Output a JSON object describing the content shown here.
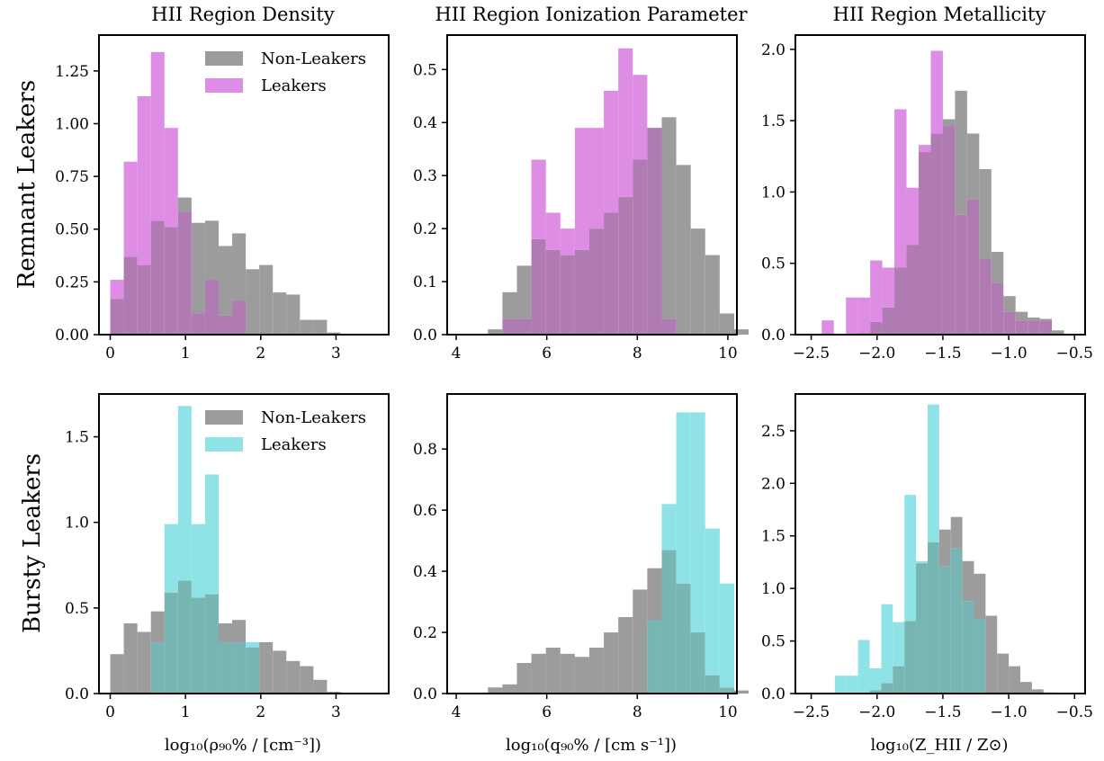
{
  "figure": {
    "column_titles": [
      "HII Region Density",
      "HII Region Ionization Parameter",
      "HII Region Metallicity"
    ],
    "row_labels": [
      "Remnant Leakers",
      "Bursty Leakers"
    ],
    "xlabels": [
      "log₁₀(ρ₉₀% / [cm⁻³])",
      "log₁₀(q₉₀% / [cm s⁻¹])",
      "log₁₀(Z_HII / Z⊙)"
    ],
    "colors": {
      "non_leakers": "#9c9c9c",
      "remnant_leakers": "#dd8de3",
      "bursty_leakers": "#8fe3e6",
      "remnant_overlap": "#b07bb2",
      "bursty_overlap": "#78b6b4"
    }
  },
  "chart_data": [
    {
      "type": "bar",
      "panel": "remnant-density",
      "row": 0,
      "col": 0,
      "xlim": [
        -0.15,
        3.7
      ],
      "ylim": [
        0,
        1.42
      ],
      "bin_start": 0.0,
      "bin_width": 0.18,
      "xticks": [
        0,
        1,
        2,
        3
      ],
      "xtick_labels": [
        "0",
        "1",
        "2",
        "3"
      ],
      "yticks": [
        0,
        0.25,
        0.5,
        0.75,
        1.0,
        1.25
      ],
      "ytick_labels": [
        "0.00",
        "0.25",
        "0.50",
        "0.75",
        "1.00",
        "1.25"
      ],
      "legend": {
        "position": "top-right",
        "entries": [
          "Non-Leakers",
          "Leakers"
        ]
      },
      "series": [
        {
          "name": "Non-Leakers",
          "values": [
            0.17,
            0.37,
            0.33,
            0.54,
            0.51,
            0.65,
            0.53,
            0.54,
            0.42,
            0.48,
            0.31,
            0.33,
            0.2,
            0.19,
            0.07,
            0.07,
            0.01,
            0,
            0
          ]
        },
        {
          "name": "Leakers",
          "values": [
            0.26,
            0.82,
            1.13,
            1.34,
            0.98,
            0.58,
            0.1,
            0.26,
            0.09,
            0.16,
            0,
            0,
            0,
            0,
            0,
            0,
            0,
            0,
            0
          ]
        }
      ]
    },
    {
      "type": "bar",
      "panel": "remnant-ionization",
      "row": 0,
      "col": 1,
      "xlim": [
        3.8,
        10.2
      ],
      "ylim": [
        0,
        0.565
      ],
      "bin_start": 4.7,
      "bin_width": 0.32,
      "xticks": [
        4,
        6,
        8,
        10
      ],
      "xtick_labels": [
        "4",
        "6",
        "8",
        "10"
      ],
      "yticks": [
        0,
        0.1,
        0.2,
        0.3,
        0.4,
        0.5
      ],
      "ytick_labels": [
        "0.0",
        "0.1",
        "0.2",
        "0.3",
        "0.4",
        "0.5"
      ],
      "series": [
        {
          "name": "Non-Leakers",
          "values": [
            0.01,
            0.08,
            0.13,
            0.18,
            0.16,
            0.15,
            0.16,
            0.2,
            0.23,
            0.26,
            0.33,
            0.39,
            0.41,
            0.32,
            0.2,
            0.15,
            0.04,
            0.01
          ]
        },
        {
          "name": "Leakers",
          "values": [
            0,
            0.03,
            0.03,
            0.33,
            0.23,
            0.2,
            0.39,
            0.39,
            0.46,
            0.54,
            0.49,
            0.39,
            0.03,
            0,
            0,
            0,
            0,
            0
          ]
        }
      ]
    },
    {
      "type": "bar",
      "panel": "remnant-metallicity",
      "row": 0,
      "col": 2,
      "xlim": [
        -2.62,
        -0.42
      ],
      "ylim": [
        0,
        2.1
      ],
      "bin_start": -2.42,
      "bin_width": 0.092,
      "xticks": [
        -2.5,
        -2.0,
        -1.5,
        -1.0,
        -0.5
      ],
      "xtick_labels": [
        "−2.5",
        "−2.0",
        "−1.5",
        "−1.0",
        "−0.5"
      ],
      "yticks": [
        0,
        0.5,
        1.0,
        1.5,
        2.0
      ],
      "ytick_labels": [
        "0.0",
        "0.5",
        "1.0",
        "1.5",
        "2.0"
      ],
      "series": [
        {
          "name": "Non-Leakers",
          "values": [
            0,
            0,
            0,
            0.01,
            0.09,
            0.19,
            0.47,
            0.63,
            1.28,
            1.41,
            1.51,
            1.71,
            1.41,
            1.16,
            0.58,
            0.27,
            0.16,
            0.12,
            0.11,
            0.03
          ]
        },
        {
          "name": "Leakers",
          "values": [
            0.1,
            0,
            0.26,
            0.26,
            0.52,
            0.47,
            1.58,
            1.03,
            1.33,
            1.99,
            1.46,
            0.84,
            0.95,
            0.53,
            0.36,
            0.16,
            0.1,
            0.1,
            0.1,
            0
          ]
        }
      ]
    },
    {
      "type": "bar",
      "panel": "bursty-density",
      "row": 1,
      "col": 0,
      "xlim": [
        -0.15,
        3.7
      ],
      "ylim": [
        0,
        1.75
      ],
      "bin_start": 0.0,
      "bin_width": 0.18,
      "xticks": [
        0,
        1,
        2,
        3
      ],
      "xtick_labels": [
        "0",
        "1",
        "2",
        "3"
      ],
      "yticks": [
        0,
        0.5,
        1.0,
        1.5
      ],
      "ytick_labels": [
        "0.0",
        "0.5",
        "1.0",
        "1.5"
      ],
      "legend": {
        "position": "top-right",
        "entries": [
          "Non-Leakers",
          "Leakers"
        ]
      },
      "series": [
        {
          "name": "Non-Leakers",
          "values": [
            0.23,
            0.41,
            0.36,
            0.48,
            0.59,
            0.66,
            0.56,
            0.58,
            0.41,
            0.43,
            0.27,
            0.3,
            0.25,
            0.19,
            0.16,
            0.08,
            0.01,
            0,
            0
          ]
        },
        {
          "name": "Leakers",
          "values": [
            0,
            0,
            0,
            0.3,
            0.99,
            1.68,
            0.99,
            1.28,
            0.3,
            0.3,
            0.3,
            0,
            0,
            0,
            0,
            0,
            0,
            0,
            0
          ]
        }
      ]
    },
    {
      "type": "bar",
      "panel": "bursty-ionization",
      "row": 1,
      "col": 1,
      "xlim": [
        3.8,
        10.2
      ],
      "ylim": [
        0,
        0.98
      ],
      "bin_start": 4.7,
      "bin_width": 0.32,
      "xticks": [
        4,
        6,
        8,
        10
      ],
      "xtick_labels": [
        "4",
        "6",
        "8",
        "10"
      ],
      "yticks": [
        0,
        0.2,
        0.4,
        0.6,
        0.8
      ],
      "ytick_labels": [
        "0.0",
        "0.2",
        "0.4",
        "0.6",
        "0.8"
      ],
      "series": [
        {
          "name": "Non-Leakers",
          "values": [
            0.02,
            0.03,
            0.1,
            0.13,
            0.15,
            0.13,
            0.12,
            0.15,
            0.2,
            0.25,
            0.34,
            0.41,
            0.47,
            0.36,
            0.2,
            0.06,
            0.02,
            0.01
          ]
        },
        {
          "name": "Leakers",
          "values": [
            0,
            0,
            0,
            0,
            0,
            0,
            0,
            0,
            0,
            0,
            0,
            0.24,
            0.62,
            0.92,
            0.92,
            0.54,
            0.36,
            0
          ]
        }
      ]
    },
    {
      "type": "bar",
      "panel": "bursty-metallicity",
      "row": 1,
      "col": 2,
      "xlim": [
        -2.62,
        -0.42
      ],
      "ylim": [
        0,
        2.85
      ],
      "bin_start": -2.32,
      "bin_width": 0.088,
      "xticks": [
        -2.5,
        -2.0,
        -1.5,
        -1.0,
        -0.5
      ],
      "xtick_labels": [
        "−2.5",
        "−2.0",
        "−1.5",
        "−1.0",
        "−0.5"
      ],
      "yticks": [
        0,
        0.5,
        1.0,
        1.5,
        2.0,
        2.5
      ],
      "ytick_labels": [
        "0.0",
        "0.5",
        "1.0",
        "1.5",
        "2.0",
        "2.5"
      ],
      "series": [
        {
          "name": "Non-Leakers",
          "values": [
            0,
            0,
            0,
            0.03,
            0.1,
            0.26,
            0.69,
            1.24,
            1.44,
            1.56,
            1.68,
            1.26,
            1.14,
            0.74,
            0.38,
            0.26,
            0.11,
            0.04,
            0.01
          ]
        },
        {
          "name": "Leakers",
          "values": [
            0.17,
            0.17,
            0.51,
            0.24,
            0.85,
            0.68,
            1.89,
            1.26,
            2.75,
            1.21,
            1.38,
            0.88,
            0.71,
            0,
            0,
            0,
            0,
            0,
            0
          ]
        }
      ]
    }
  ]
}
